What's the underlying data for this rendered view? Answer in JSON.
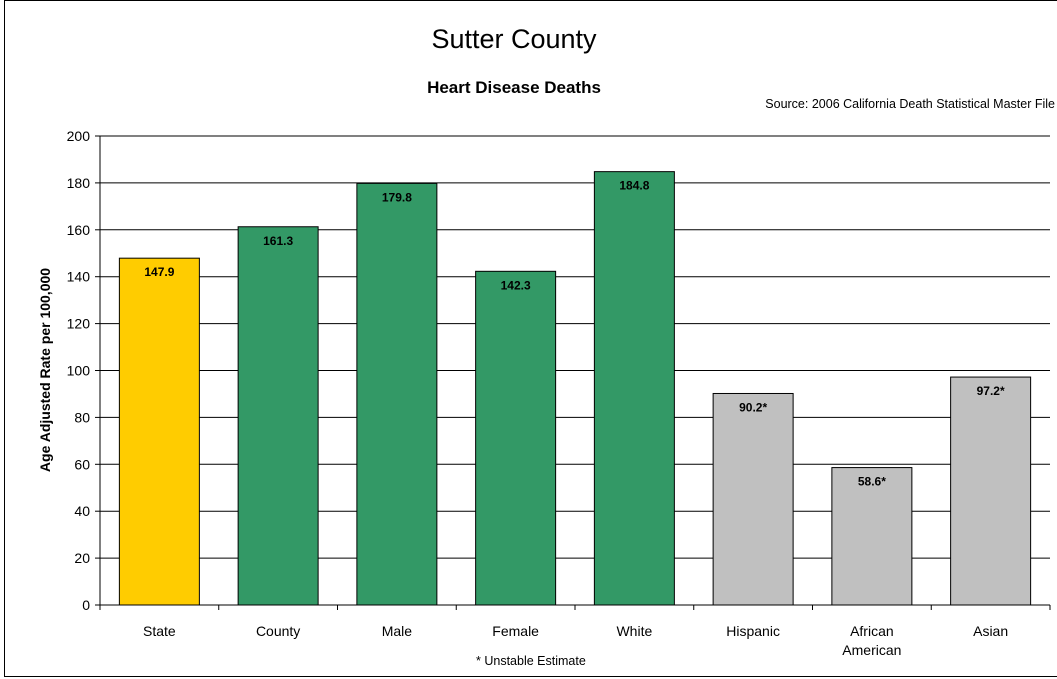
{
  "chart_data": {
    "type": "bar",
    "title": "Sutter County",
    "subtitle": "Heart Disease Deaths",
    "source": "Source: 2006 California Death Statistical Master File",
    "ylabel": "Age Adjusted Rate per 100,000",
    "footnote": "* Unstable Estimate",
    "ylim": [
      0,
      200
    ],
    "yticks": [
      0,
      20,
      40,
      60,
      80,
      100,
      120,
      140,
      160,
      180,
      200
    ],
    "grid": true,
    "categories": [
      [
        "State"
      ],
      [
        "County"
      ],
      [
        "Male"
      ],
      [
        "Female"
      ],
      [
        "White"
      ],
      [
        "Hispanic"
      ],
      [
        "African",
        "American"
      ],
      [
        "Asian"
      ]
    ],
    "values": [
      147.9,
      161.3,
      179.8,
      142.3,
      184.8,
      90.2,
      58.6,
      97.2
    ],
    "data_labels": [
      "147.9",
      "161.3",
      "179.8",
      "142.3",
      "184.8",
      "90.2*",
      "58.6*",
      "97.2*"
    ],
    "colors": [
      "#FFCC00",
      "#339966",
      "#339966",
      "#339966",
      "#339966",
      "#C0C0C0",
      "#C0C0C0",
      "#C0C0C0"
    ]
  }
}
